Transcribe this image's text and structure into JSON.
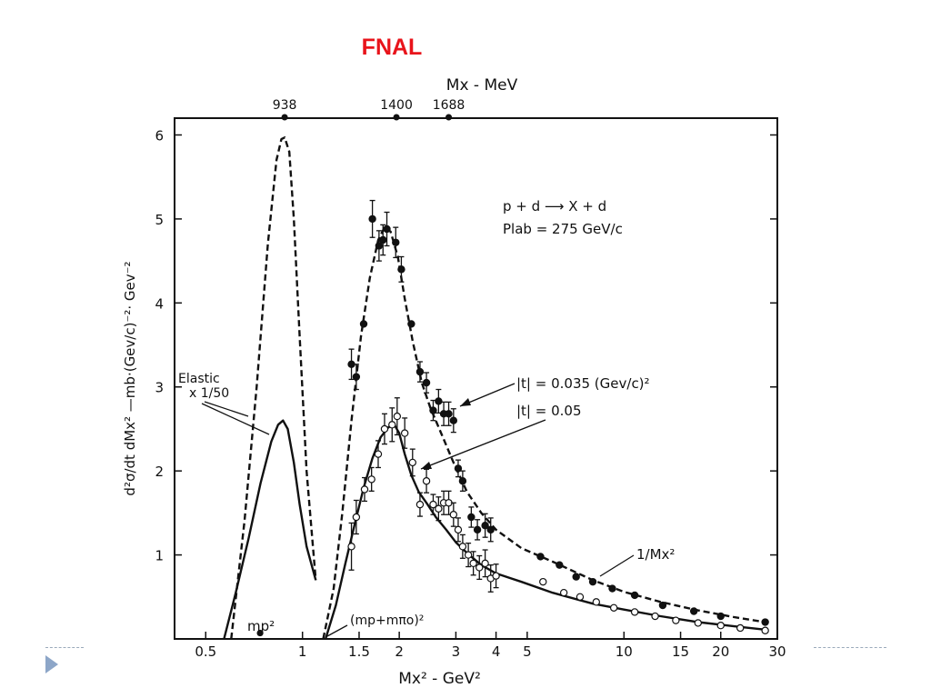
{
  "slide": {
    "title": "FNAL",
    "accent_color": "#e8141b",
    "nav_icon": "triangle-right-icon"
  },
  "chart_data": {
    "type": "scatter",
    "xscale": "log",
    "xlabel": "Mx² - GeV²",
    "ylabel": "d²σ/dt dMx² —mb·(Gev/c)⁻²· Gev⁻²",
    "top_axis_label": "Mx - MeV",
    "xlim": [
      0.4,
      30
    ],
    "ylim": [
      0,
      6.2
    ],
    "xticks": [
      0.5,
      1,
      1.5,
      2,
      3,
      4,
      5,
      10,
      15,
      20,
      30
    ],
    "xticklabels": [
      "0.5",
      "1",
      "1.5",
      "2",
      "3",
      "4",
      "5",
      "10",
      "15",
      "20",
      "30"
    ],
    "yticks": [
      1,
      2,
      3,
      4,
      5,
      6
    ],
    "top_markers": [
      {
        "label": "938",
        "x": 0.88
      },
      {
        "label": "1400",
        "x": 1.96
      },
      {
        "label": "1688",
        "x": 2.85
      }
    ],
    "reaction_text": [
      "p + d  ⟶  X + d",
      "Plab = 275 GeV/c"
    ],
    "annotations": {
      "elastic": [
        "Elastic",
        "x 1/50"
      ],
      "t035": "|t| = 0.035 (Gev/c)²",
      "t05": "|t| = 0.05",
      "inverse": "1/Mx²",
      "mp2": "mp²",
      "threshold": "(mp+mπo)²"
    },
    "series": [
      {
        "name": "|t| = 0.035 (Gev/c)²",
        "marker": "filled",
        "curve": "dashed",
        "points": [
          {
            "x": 1.42,
            "y": 3.27,
            "err": 0.18
          },
          {
            "x": 1.47,
            "y": 3.12,
            "err": 0.15
          },
          {
            "x": 1.55,
            "y": 3.75,
            "err": 0.0
          },
          {
            "x": 1.65,
            "y": 5.0,
            "err": 0.22
          },
          {
            "x": 1.73,
            "y": 4.68,
            "err": 0.18
          },
          {
            "x": 1.78,
            "y": 4.75,
            "err": 0.18
          },
          {
            "x": 1.83,
            "y": 4.88,
            "err": 0.2
          },
          {
            "x": 1.95,
            "y": 4.72,
            "err": 0.18
          },
          {
            "x": 2.03,
            "y": 4.4,
            "err": 0.15
          },
          {
            "x": 2.18,
            "y": 3.75,
            "err": 0.0
          },
          {
            "x": 2.32,
            "y": 3.18,
            "err": 0.12
          },
          {
            "x": 2.43,
            "y": 3.05,
            "err": 0.12
          },
          {
            "x": 2.55,
            "y": 2.72,
            "err": 0.12
          },
          {
            "x": 2.65,
            "y": 2.83,
            "err": 0.14
          },
          {
            "x": 2.75,
            "y": 2.68,
            "err": 0.14
          },
          {
            "x": 2.85,
            "y": 2.68,
            "err": 0.14
          },
          {
            "x": 2.95,
            "y": 2.6,
            "err": 0.14
          },
          {
            "x": 3.05,
            "y": 2.03,
            "err": 0.1
          },
          {
            "x": 3.15,
            "y": 1.88,
            "err": 0.12
          },
          {
            "x": 3.35,
            "y": 1.45,
            "err": 0.12
          },
          {
            "x": 3.5,
            "y": 1.3,
            "err": 0.12
          },
          {
            "x": 3.7,
            "y": 1.35,
            "err": 0.14
          },
          {
            "x": 3.85,
            "y": 1.3,
            "err": 0.14
          },
          {
            "x": 5.5,
            "y": 0.98,
            "err": 0.0
          },
          {
            "x": 6.3,
            "y": 0.88,
            "err": 0.0
          },
          {
            "x": 7.1,
            "y": 0.74,
            "err": 0.0
          },
          {
            "x": 8.0,
            "y": 0.68,
            "err": 0.0
          },
          {
            "x": 9.2,
            "y": 0.6,
            "err": 0.0
          },
          {
            "x": 10.8,
            "y": 0.52,
            "err": 0.0
          },
          {
            "x": 13.2,
            "y": 0.4,
            "err": 0.0
          },
          {
            "x": 16.5,
            "y": 0.33,
            "err": 0.0
          },
          {
            "x": 20.0,
            "y": 0.27,
            "err": 0.0
          },
          {
            "x": 27.5,
            "y": 0.2,
            "err": 0.0
          }
        ]
      },
      {
        "name": "|t| = 0.05",
        "marker": "open",
        "curve": "solid",
        "points": [
          {
            "x": 1.42,
            "y": 1.1,
            "err": 0.28
          },
          {
            "x": 1.47,
            "y": 1.45,
            "err": 0.2
          },
          {
            "x": 1.56,
            "y": 1.78,
            "err": 0.14
          },
          {
            "x": 1.64,
            "y": 1.9,
            "err": 0.14
          },
          {
            "x": 1.72,
            "y": 2.2,
            "err": 0.16
          },
          {
            "x": 1.8,
            "y": 2.5,
            "err": 0.18
          },
          {
            "x": 1.9,
            "y": 2.55,
            "err": 0.2
          },
          {
            "x": 1.97,
            "y": 2.65,
            "err": 0.22
          },
          {
            "x": 2.08,
            "y": 2.45,
            "err": 0.18
          },
          {
            "x": 2.2,
            "y": 2.1,
            "err": 0.16
          },
          {
            "x": 2.32,
            "y": 1.6,
            "err": 0.14
          },
          {
            "x": 2.43,
            "y": 1.88,
            "err": 0.14
          },
          {
            "x": 2.55,
            "y": 1.6,
            "err": 0.12
          },
          {
            "x": 2.65,
            "y": 1.55,
            "err": 0.14
          },
          {
            "x": 2.75,
            "y": 1.62,
            "err": 0.14
          },
          {
            "x": 2.85,
            "y": 1.62,
            "err": 0.14
          },
          {
            "x": 2.95,
            "y": 1.48,
            "err": 0.14
          },
          {
            "x": 3.05,
            "y": 1.3,
            "err": 0.14
          },
          {
            "x": 3.15,
            "y": 1.1,
            "err": 0.14
          },
          {
            "x": 3.28,
            "y": 1.0,
            "err": 0.14
          },
          {
            "x": 3.4,
            "y": 0.9,
            "err": 0.14
          },
          {
            "x": 3.55,
            "y": 0.85,
            "err": 0.14
          },
          {
            "x": 3.7,
            "y": 0.9,
            "err": 0.16
          },
          {
            "x": 3.85,
            "y": 0.72,
            "err": 0.16
          },
          {
            "x": 4.0,
            "y": 0.75,
            "err": 0.14
          },
          {
            "x": 5.6,
            "y": 0.68,
            "err": 0.0
          },
          {
            "x": 6.5,
            "y": 0.55,
            "err": 0.0
          },
          {
            "x": 7.3,
            "y": 0.5,
            "err": 0.0
          },
          {
            "x": 8.2,
            "y": 0.44,
            "err": 0.0
          },
          {
            "x": 9.3,
            "y": 0.37,
            "err": 0.0
          },
          {
            "x": 10.8,
            "y": 0.32,
            "err": 0.0
          },
          {
            "x": 12.5,
            "y": 0.27,
            "err": 0.0
          },
          {
            "x": 14.5,
            "y": 0.22,
            "err": 0.0
          },
          {
            "x": 17.0,
            "y": 0.19,
            "err": 0.0
          },
          {
            "x": 20.0,
            "y": 0.16,
            "err": 0.0
          },
          {
            "x": 23.0,
            "y": 0.13,
            "err": 0.0
          },
          {
            "x": 27.5,
            "y": 0.1,
            "err": 0.0
          }
        ]
      }
    ],
    "curves": [
      {
        "name": "elastic-dashed",
        "style": "dashed",
        "x": [
          0.6,
          0.66,
          0.72,
          0.78,
          0.83,
          0.86,
          0.88,
          0.91,
          0.94,
          0.98,
          1.03,
          1.1
        ],
        "y": [
          0.0,
          1.4,
          3.0,
          4.7,
          5.7,
          5.95,
          5.97,
          5.8,
          5.0,
          3.6,
          2.0,
          0.7
        ]
      },
      {
        "name": "elastic-solid",
        "style": "solid",
        "x": [
          0.57,
          0.62,
          0.68,
          0.74,
          0.8,
          0.84,
          0.87,
          0.9,
          0.94,
          0.98,
          1.03,
          1.1
        ],
        "y": [
          0.0,
          0.55,
          1.2,
          1.85,
          2.35,
          2.55,
          2.6,
          2.5,
          2.1,
          1.6,
          1.1,
          0.7
        ]
      },
      {
        "name": "t035-curve",
        "style": "dashed",
        "x": [
          1.16,
          1.25,
          1.33,
          1.42,
          1.52,
          1.62,
          1.72,
          1.8,
          1.88,
          1.98,
          2.08,
          2.2,
          2.35,
          2.5,
          2.7,
          2.95,
          3.25,
          3.6,
          4.0,
          4.8,
          6,
          8,
          10,
          13,
          17,
          22,
          27.5
        ],
        "y": [
          0.0,
          0.6,
          1.5,
          2.6,
          3.6,
          4.3,
          4.75,
          4.9,
          4.85,
          4.55,
          4.05,
          3.55,
          3.05,
          2.75,
          2.45,
          2.1,
          1.75,
          1.5,
          1.3,
          1.08,
          0.92,
          0.7,
          0.56,
          0.44,
          0.34,
          0.26,
          0.2
        ]
      },
      {
        "name": "t05-curve",
        "style": "solid",
        "x": [
          1.18,
          1.27,
          1.36,
          1.45,
          1.55,
          1.65,
          1.75,
          1.85,
          1.93,
          2.0,
          2.08,
          2.18,
          2.3,
          2.45,
          2.6,
          2.8,
          3.0,
          3.3,
          3.6,
          4.0,
          4.8,
          6,
          8,
          10,
          13,
          17,
          22,
          27.5
        ],
        "y": [
          0.0,
          0.4,
          0.9,
          1.35,
          1.8,
          2.15,
          2.4,
          2.52,
          2.55,
          2.45,
          2.2,
          1.95,
          1.75,
          1.6,
          1.45,
          1.3,
          1.15,
          1.0,
          0.88,
          0.78,
          0.68,
          0.55,
          0.42,
          0.35,
          0.27,
          0.2,
          0.15,
          0.11
        ]
      }
    ],
    "extra_points": [
      {
        "label": "mp²",
        "x": 0.88,
        "y": 0.07
      }
    ]
  }
}
